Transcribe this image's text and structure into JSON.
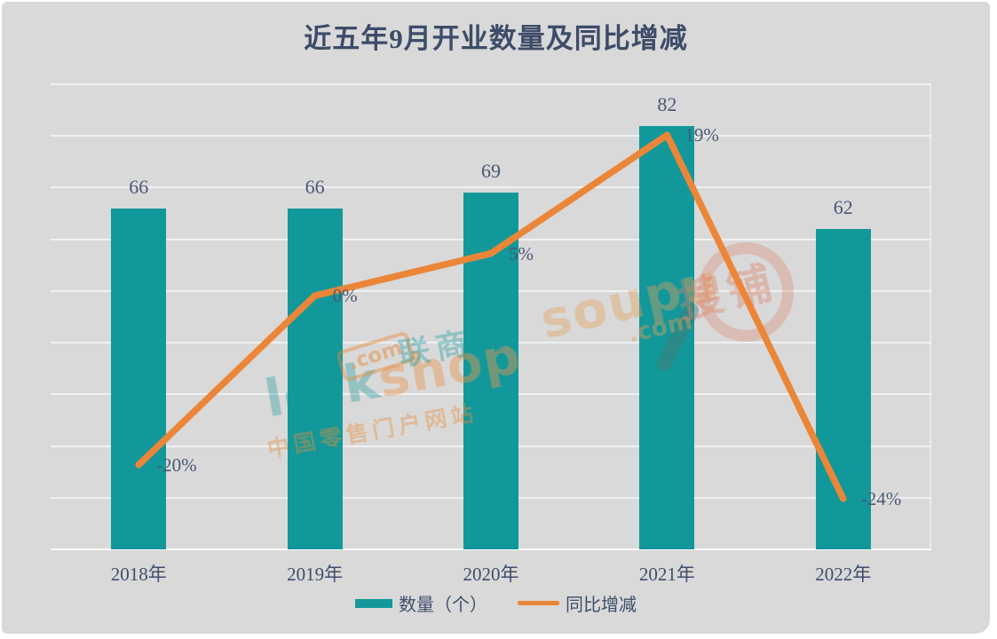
{
  "title": "近五年9月开业数量及同比增减",
  "colors": {
    "bar_teal": "#12989A",
    "line_orange": "#EB8638",
    "title_text": "#3D4C68",
    "label_text": "#4A5874",
    "card_background": "#D9D9D9",
    "gridline": "#FFFFFF"
  },
  "legend": [
    {
      "label": "数量（个）",
      "color": "#12989A",
      "type": "bar"
    },
    {
      "label": "同比增减",
      "color": "#EB8638",
      "type": "line"
    }
  ],
  "watermarks": {
    "linkshop": {
      "logo": "l",
      "logo_rest": "nk",
      "logo_tail": "shop",
      "com": ".com",
      "cn": "联商网",
      "slogan": "中国零售门户网站"
    },
    "soupu": {
      "logo": "soupu",
      "com": ".com",
      "cn": "搜铺"
    }
  },
  "chart_data": {
    "type": "combo",
    "title": "近五年9月开业数量及同比增减",
    "categories": [
      "2018年",
      "2019年",
      "2020年",
      "2021年",
      "2022年"
    ],
    "series": [
      {
        "name": "数量（个）",
        "type": "bar",
        "values": [
          66,
          66,
          69,
          82,
          62
        ],
        "labels": [
          "66",
          "66",
          "69",
          "82",
          "62"
        ],
        "color": "#12989A"
      },
      {
        "name": "同比增减",
        "type": "line",
        "values": [
          -20,
          0,
          5,
          19,
          -24
        ],
        "labels": [
          "-20%",
          "0%",
          "5%",
          "19%",
          "-24%"
        ],
        "color": "#EB8638"
      }
    ],
    "bar_axis_range": [
      0,
      90
    ],
    "pct_axis_range": [
      -30,
      25
    ],
    "grid": true,
    "axis_tick_labels_visible": false,
    "legend_position": "bottom"
  }
}
